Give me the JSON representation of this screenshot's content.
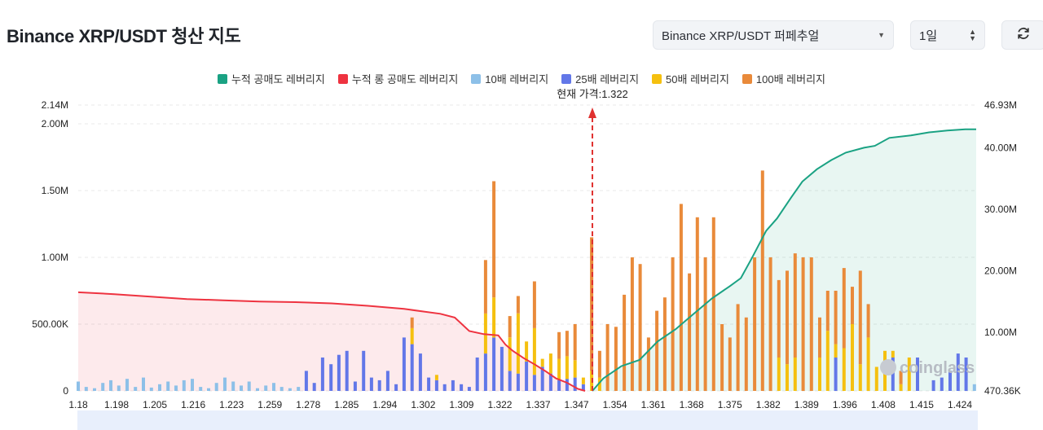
{
  "header": {
    "title": "Binance XRP/USDT 청산 지도",
    "pair_select": "Binance XRP/USDT 퍼페추얼",
    "range_select": "1일"
  },
  "icons": {
    "pair_caret": "chevron-down-icon",
    "range_spinner": "up-down-icon",
    "refresh": "refresh-icon"
  },
  "watermark": "coinglass",
  "chart_data": {
    "type": "bar",
    "title": "",
    "current_price_label": "현재 가격:1.322",
    "current_price": 1.322,
    "legend_position": "top-center",
    "grid": true,
    "legend": [
      {
        "name": "누적 공매도 레버리지",
        "color": "#1aa283"
      },
      {
        "name": "누적 롱 공매도 레버리지",
        "color": "#ee3340"
      },
      {
        "name": "10배 레버리지",
        "color": "#8dc0e8"
      },
      {
        "name": "25배 레버리지",
        "color": "#6277e8"
      },
      {
        "name": "50배 레버리지",
        "color": "#f5c00f"
      },
      {
        "name": "100배 레버리지",
        "color": "#e98a3a"
      }
    ],
    "x_tick_labels": [
      "1.18",
      "1.198",
      "1.205",
      "1.216",
      "1.223",
      "1.259",
      "1.278",
      "1.285",
      "1.294",
      "1.302",
      "1.309",
      "1.322",
      "1.337",
      "1.347",
      "1.354",
      "1.361",
      "1.368",
      "1.375",
      "1.382",
      "1.389",
      "1.396",
      "1.408",
      "1.415",
      "1.424"
    ],
    "y_left": {
      "ticks": [
        0,
        500000,
        1000000,
        1500000,
        2000000
      ],
      "tick_labels": [
        "0",
        "500.00K",
        "1.00M",
        "1.50M",
        "2.00M"
      ],
      "max_label": "2.14M",
      "range": [
        0,
        2140000
      ]
    },
    "y_right": {
      "ticks": [
        470360,
        10000000,
        20000000,
        30000000,
        40000000
      ],
      "tick_labels": [
        "470.36K",
        "10.00M",
        "20.00M",
        "30.00M",
        "40.00M"
      ],
      "max_label": "46.93M",
      "range": [
        470360,
        46930000
      ]
    },
    "price_range": [
      1.18,
      1.428
    ],
    "series": [
      {
        "name": "누적 롱 공매도 레버리지",
        "axis": "right",
        "prices": [
          1.18,
          1.19,
          1.2,
          1.21,
          1.22,
          1.23,
          1.24,
          1.25,
          1.26,
          1.27,
          1.28,
          1.284,
          1.288,
          1.292,
          1.296,
          1.298,
          1.3,
          1.303,
          1.306,
          1.309,
          1.312,
          1.315,
          1.318,
          1.32
        ],
        "values": [
          16500000,
          16200000,
          15800000,
          15400000,
          15200000,
          15000000,
          14900000,
          14700000,
          14300000,
          13800000,
          13000000,
          12400000,
          10200000,
          9700000,
          9500000,
          8000000,
          7000000,
          5800000,
          4800000,
          3700000,
          2500000,
          1800000,
          800000,
          470360
        ]
      },
      {
        "name": "누적 공매도 레버리지",
        "axis": "right",
        "prices": [
          1.322,
          1.325,
          1.33,
          1.335,
          1.34,
          1.345,
          1.35,
          1.355,
          1.36,
          1.363,
          1.366,
          1.37,
          1.373,
          1.377,
          1.38,
          1.384,
          1.388,
          1.392,
          1.397,
          1.4,
          1.404,
          1.41,
          1.415,
          1.42,
          1.425,
          1.428
        ],
        "values": [
          470360,
          2500000,
          4500000,
          5500000,
          8500000,
          10500000,
          13000000,
          15500000,
          17500000,
          18800000,
          22000000,
          26500000,
          28500000,
          32000000,
          34500000,
          36500000,
          38000000,
          39200000,
          40000000,
          40300000,
          41600000,
          42000000,
          42500000,
          42800000,
          43000000,
          43000000
        ]
      }
    ],
    "bars": [
      {
        "p": 1.18,
        "c10": 70000,
        "c25": 0,
        "c50": 0,
        "c100": 0
      },
      {
        "p": 1.1822,
        "c10": 30000,
        "c25": 0,
        "c50": 0,
        "c100": 0
      },
      {
        "p": 1.1845,
        "c10": 20000,
        "c25": 0,
        "c50": 0,
        "c100": 0
      },
      {
        "p": 1.1868,
        "c10": 60000,
        "c25": 0,
        "c50": 0,
        "c100": 0
      },
      {
        "p": 1.189,
        "c10": 80000,
        "c25": 0,
        "c50": 0,
        "c100": 0
      },
      {
        "p": 1.1912,
        "c10": 40000,
        "c25": 0,
        "c50": 0,
        "c100": 0
      },
      {
        "p": 1.1935,
        "c10": 90000,
        "c25": 0,
        "c50": 0,
        "c100": 0
      },
      {
        "p": 1.1958,
        "c10": 30000,
        "c25": 0,
        "c50": 0,
        "c100": 0
      },
      {
        "p": 1.198,
        "c10": 100000,
        "c25": 0,
        "c50": 0,
        "c100": 0
      },
      {
        "p": 1.2002,
        "c10": 25000,
        "c25": 0,
        "c50": 0,
        "c100": 0
      },
      {
        "p": 1.2025,
        "c10": 50000,
        "c25": 0,
        "c50": 0,
        "c100": 0
      },
      {
        "p": 1.2048,
        "c10": 70000,
        "c25": 0,
        "c50": 0,
        "c100": 0
      },
      {
        "p": 1.207,
        "c10": 40000,
        "c25": 0,
        "c50": 0,
        "c100": 0
      },
      {
        "p": 1.2092,
        "c10": 80000,
        "c25": 0,
        "c50": 0,
        "c100": 0
      },
      {
        "p": 1.2115,
        "c10": 90000,
        "c25": 0,
        "c50": 0,
        "c100": 0
      },
      {
        "p": 1.2138,
        "c10": 30000,
        "c25": 0,
        "c50": 0,
        "c100": 0
      },
      {
        "p": 1.216,
        "c10": 20000,
        "c25": 0,
        "c50": 0,
        "c100": 0
      },
      {
        "p": 1.2182,
        "c10": 60000,
        "c25": 0,
        "c50": 0,
        "c100": 0
      },
      {
        "p": 1.2205,
        "c10": 100000,
        "c25": 0,
        "c50": 0,
        "c100": 0
      },
      {
        "p": 1.2228,
        "c10": 70000,
        "c25": 0,
        "c50": 0,
        "c100": 0
      },
      {
        "p": 1.225,
        "c10": 40000,
        "c25": 0,
        "c50": 0,
        "c100": 0
      },
      {
        "p": 1.2272,
        "c10": 70000,
        "c25": 0,
        "c50": 0,
        "c100": 0
      },
      {
        "p": 1.2295,
        "c10": 20000,
        "c25": 0,
        "c50": 0,
        "c100": 0
      },
      {
        "p": 1.2318,
        "c10": 40000,
        "c25": 0,
        "c50": 0,
        "c100": 0
      },
      {
        "p": 1.234,
        "c10": 60000,
        "c25": 0,
        "c50": 0,
        "c100": 0
      },
      {
        "p": 1.2362,
        "c10": 30000,
        "c25": 0,
        "c50": 0,
        "c100": 0
      },
      {
        "p": 1.2385,
        "c10": 20000,
        "c25": 0,
        "c50": 0,
        "c100": 0
      },
      {
        "p": 1.2408,
        "c10": 30000,
        "c25": 0,
        "c50": 0,
        "c100": 0
      },
      {
        "p": 1.243,
        "c10": 0,
        "c25": 150000,
        "c50": 0,
        "c100": 0
      },
      {
        "p": 1.2452,
        "c10": 0,
        "c25": 60000,
        "c50": 0,
        "c100": 0
      },
      {
        "p": 1.2475,
        "c10": 0,
        "c25": 250000,
        "c50": 0,
        "c100": 0
      },
      {
        "p": 1.2498,
        "c10": 0,
        "c25": 200000,
        "c50": 0,
        "c100": 0
      },
      {
        "p": 1.252,
        "c10": 0,
        "c25": 270000,
        "c50": 0,
        "c100": 0
      },
      {
        "p": 1.2542,
        "c10": 0,
        "c25": 300000,
        "c50": 0,
        "c100": 0
      },
      {
        "p": 1.2565,
        "c10": 0,
        "c25": 70000,
        "c50": 0,
        "c100": 0
      },
      {
        "p": 1.2588,
        "c10": 0,
        "c25": 300000,
        "c50": 0,
        "c100": 0
      },
      {
        "p": 1.261,
        "c10": 0,
        "c25": 100000,
        "c50": 0,
        "c100": 0
      },
      {
        "p": 1.2632,
        "c10": 0,
        "c25": 80000,
        "c50": 0,
        "c100": 0
      },
      {
        "p": 1.2655,
        "c10": 0,
        "c25": 150000,
        "c50": 0,
        "c100": 0
      },
      {
        "p": 1.2678,
        "c10": 0,
        "c25": 50000,
        "c50": 0,
        "c100": 0
      },
      {
        "p": 1.27,
        "c10": 0,
        "c25": 400000,
        "c50": 0,
        "c100": 0
      },
      {
        "p": 1.2722,
        "c10": 0,
        "c25": 350000,
        "c50": 120000,
        "c100": 80000
      },
      {
        "p": 1.2745,
        "c10": 0,
        "c25": 280000,
        "c50": 0,
        "c100": 0
      },
      {
        "p": 1.2768,
        "c10": 0,
        "c25": 100000,
        "c50": 0,
        "c100": 0
      },
      {
        "p": 1.279,
        "c10": 0,
        "c25": 80000,
        "c50": 40000,
        "c100": 0
      },
      {
        "p": 1.2812,
        "c10": 0,
        "c25": 50000,
        "c50": 0,
        "c100": 0
      },
      {
        "p": 1.2835,
        "c10": 0,
        "c25": 80000,
        "c50": 0,
        "c100": 0
      },
      {
        "p": 1.2858,
        "c10": 0,
        "c25": 50000,
        "c50": 0,
        "c100": 0
      },
      {
        "p": 1.288,
        "c10": 0,
        "c25": 30000,
        "c50": 0,
        "c100": 0
      },
      {
        "p": 1.2902,
        "c10": 0,
        "c25": 250000,
        "c50": 0,
        "c100": 0
      },
      {
        "p": 1.2925,
        "c10": 0,
        "c25": 280000,
        "c50": 300000,
        "c100": 400000
      },
      {
        "p": 1.2948,
        "c10": 0,
        "c25": 400000,
        "c50": 300000,
        "c100": 870000
      },
      {
        "p": 1.297,
        "c10": 0,
        "c25": 330000,
        "c50": 0,
        "c100": 0
      },
      {
        "p": 1.2992,
        "c10": 0,
        "c25": 150000,
        "c50": 250000,
        "c100": 160000
      },
      {
        "p": 1.3015,
        "c10": 0,
        "c25": 130000,
        "c50": 450000,
        "c100": 130000
      },
      {
        "p": 1.3038,
        "c10": 0,
        "c25": 220000,
        "c50": 150000,
        "c100": 0
      },
      {
        "p": 1.306,
        "c10": 0,
        "c25": 120000,
        "c50": 350000,
        "c100": 350000
      },
      {
        "p": 1.3082,
        "c10": 0,
        "c25": 180000,
        "c50": 60000,
        "c100": 0
      },
      {
        "p": 1.3105,
        "c10": 0,
        "c25": 130000,
        "c50": 150000,
        "c100": 0
      },
      {
        "p": 1.3128,
        "c10": 0,
        "c25": 80000,
        "c50": 160000,
        "c100": 200000
      },
      {
        "p": 1.315,
        "c10": 0,
        "c25": 90000,
        "c50": 170000,
        "c100": 190000
      },
      {
        "p": 1.3172,
        "c10": 0,
        "c25": 100000,
        "c50": 130000,
        "c100": 270000
      },
      {
        "p": 1.3195,
        "c10": 0,
        "c25": 50000,
        "c50": 50000,
        "c100": 0
      },
      {
        "p": 1.3218,
        "c10": 0,
        "c25": 0,
        "c50": 150000,
        "c100": 1000000
      },
      {
        "p": 1.324,
        "c10": 0,
        "c25": 0,
        "c50": 100000,
        "c100": 200000
      },
      {
        "p": 1.3262,
        "c10": 0,
        "c25": 0,
        "c50": 0,
        "c100": 500000
      },
      {
        "p": 1.3285,
        "c10": 0,
        "c25": 0,
        "c50": 0,
        "c100": 480000
      },
      {
        "p": 1.3308,
        "c10": 0,
        "c25": 0,
        "c50": 0,
        "c100": 720000
      },
      {
        "p": 1.333,
        "c10": 0,
        "c25": 0,
        "c50": 0,
        "c100": 1000000
      },
      {
        "p": 1.3352,
        "c10": 0,
        "c25": 0,
        "c50": 0,
        "c100": 950000
      },
      {
        "p": 1.3375,
        "c10": 0,
        "c25": 0,
        "c50": 0,
        "c100": 400000
      },
      {
        "p": 1.3398,
        "c10": 0,
        "c25": 0,
        "c50": 0,
        "c100": 600000
      },
      {
        "p": 1.342,
        "c10": 0,
        "c25": 0,
        "c50": 0,
        "c100": 700000
      },
      {
        "p": 1.3442,
        "c10": 0,
        "c25": 0,
        "c50": 0,
        "c100": 1000000
      },
      {
        "p": 1.3465,
        "c10": 0,
        "c25": 0,
        "c50": 0,
        "c100": 1400000
      },
      {
        "p": 1.3488,
        "c10": 0,
        "c25": 0,
        "c50": 0,
        "c100": 880000
      },
      {
        "p": 1.351,
        "c10": 0,
        "c25": 0,
        "c50": 0,
        "c100": 1300000
      },
      {
        "p": 1.3532,
        "c10": 0,
        "c25": 0,
        "c50": 0,
        "c100": 1000000
      },
      {
        "p": 1.3555,
        "c10": 0,
        "c25": 0,
        "c50": 0,
        "c100": 1300000
      },
      {
        "p": 1.3578,
        "c10": 0,
        "c25": 0,
        "c50": 0,
        "c100": 500000
      },
      {
        "p": 1.36,
        "c10": 0,
        "c25": 0,
        "c50": 0,
        "c100": 400000
      },
      {
        "p": 1.3622,
        "c10": 0,
        "c25": 0,
        "c50": 0,
        "c100": 650000
      },
      {
        "p": 1.3645,
        "c10": 0,
        "c25": 0,
        "c50": 0,
        "c100": 550000
      },
      {
        "p": 1.3668,
        "c10": 0,
        "c25": 0,
        "c50": 0,
        "c100": 1000000
      },
      {
        "p": 1.369,
        "c10": 0,
        "c25": 0,
        "c50": 0,
        "c100": 1650000
      },
      {
        "p": 1.3712,
        "c10": 0,
        "c25": 0,
        "c50": 0,
        "c100": 1000000
      },
      {
        "p": 1.3735,
        "c10": 0,
        "c25": 0,
        "c50": 250000,
        "c100": 580000
      },
      {
        "p": 1.3758,
        "c10": 0,
        "c25": 0,
        "c50": 200000,
        "c100": 700000
      },
      {
        "p": 1.378,
        "c10": 0,
        "c25": 0,
        "c50": 250000,
        "c100": 780000
      },
      {
        "p": 1.3802,
        "c10": 0,
        "c25": 0,
        "c50": 0,
        "c100": 1000000
      },
      {
        "p": 1.3825,
        "c10": 0,
        "c25": 0,
        "c50": 0,
        "c100": 1000000
      },
      {
        "p": 1.3848,
        "c10": 0,
        "c25": 0,
        "c50": 250000,
        "c100": 300000
      },
      {
        "p": 1.387,
        "c10": 0,
        "c25": 0,
        "c50": 450000,
        "c100": 300000
      },
      {
        "p": 1.3892,
        "c10": 0,
        "c25": 250000,
        "c50": 100000,
        "c100": 400000
      },
      {
        "p": 1.3915,
        "c10": 0,
        "c25": 0,
        "c50": 320000,
        "c100": 600000
      },
      {
        "p": 1.3938,
        "c10": 0,
        "c25": 0,
        "c50": 500000,
        "c100": 280000
      },
      {
        "p": 1.396,
        "c10": 0,
        "c25": 0,
        "c50": 200000,
        "c100": 700000
      },
      {
        "p": 1.3982,
        "c10": 0,
        "c25": 0,
        "c50": 400000,
        "c100": 250000
      },
      {
        "p": 1.4005,
        "c10": 0,
        "c25": 0,
        "c50": 180000,
        "c100": 0
      },
      {
        "p": 1.4028,
        "c10": 0,
        "c25": 0,
        "c50": 300000,
        "c100": 0
      },
      {
        "p": 1.405,
        "c10": 0,
        "c25": 250000,
        "c50": 50000,
        "c100": 0
      },
      {
        "p": 1.4072,
        "c10": 0,
        "c25": 0,
        "c50": 50000,
        "c100": 100000
      },
      {
        "p": 1.4095,
        "c10": 0,
        "c25": 0,
        "c50": 250000,
        "c100": 0
      },
      {
        "p": 1.4118,
        "c10": 0,
        "c25": 250000,
        "c50": 0,
        "c100": 0
      },
      {
        "p": 1.414,
        "c10": 0,
        "c25": 0,
        "c50": 0,
        "c100": 0
      },
      {
        "p": 1.4162,
        "c10": 0,
        "c25": 80000,
        "c50": 0,
        "c100": 0
      },
      {
        "p": 1.4185,
        "c10": 0,
        "c25": 100000,
        "c50": 0,
        "c100": 0
      },
      {
        "p": 1.4208,
        "c10": 0,
        "c25": 150000,
        "c50": 0,
        "c100": 0
      },
      {
        "p": 1.423,
        "c10": 0,
        "c25": 280000,
        "c50": 0,
        "c100": 0
      },
      {
        "p": 1.4252,
        "c10": 0,
        "c25": 250000,
        "c50": 0,
        "c100": 0
      },
      {
        "p": 1.4275,
        "c10": 50000,
        "c25": 0,
        "c50": 0,
        "c100": 0
      }
    ]
  }
}
